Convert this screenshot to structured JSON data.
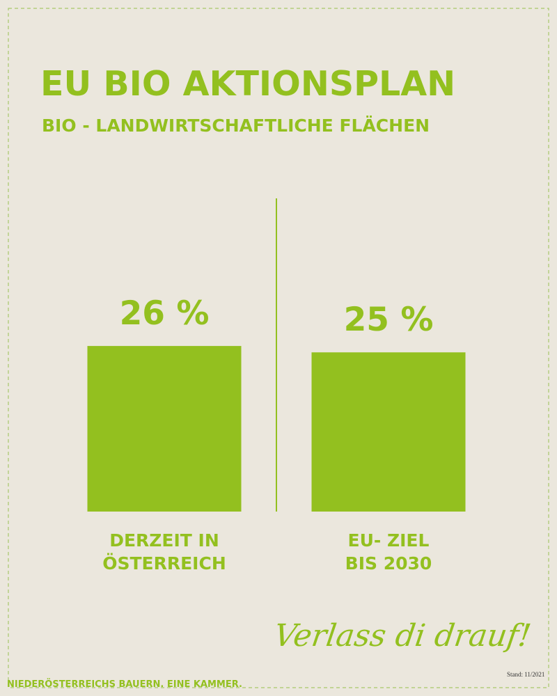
{
  "chart_data": {
    "type": "bar",
    "title": "EU BIO AKTIONSPLAN",
    "subtitle": "BIO - LANDWIRTSCHAFTLICHE FLÄCHEN",
    "categories": [
      "DERZEIT IN\nÖSTERREICH",
      "EU- ZIEL\nBIS 2030"
    ],
    "values": [
      26,
      25
    ],
    "value_labels": [
      "26 %",
      "25 %"
    ],
    "color": "#93c01f",
    "slogan": "Verlass di drauf!",
    "footer": "NIEDERÖSTERREICHS BAUERN. EINE KAMMER.",
    "note": "Stand: 11/2021"
  }
}
